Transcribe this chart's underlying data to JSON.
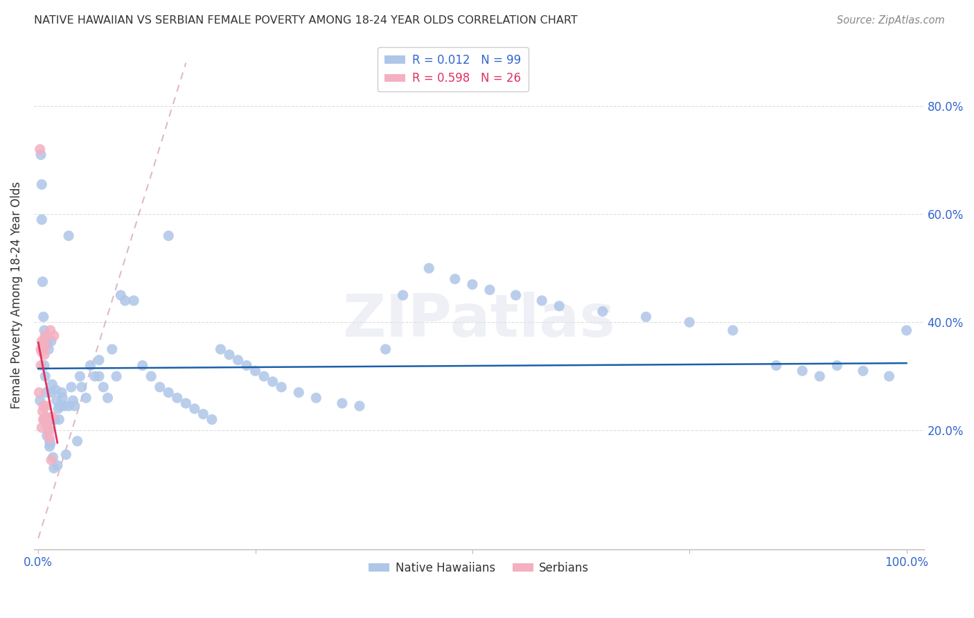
{
  "title": "NATIVE HAWAIIAN VS SERBIAN FEMALE POVERTY AMONG 18-24 YEAR OLDS CORRELATION CHART",
  "source": "Source: ZipAtlas.com",
  "ylabel": "Female Poverty Among 18-24 Year Olds",
  "r_hawaiian": 0.012,
  "n_hawaiian": 99,
  "r_serbian": 0.598,
  "n_serbian": 26,
  "hawaiian_color": "#aec6e8",
  "serbian_color": "#f4b0c0",
  "hawaiian_line_color": "#1a5fa8",
  "serbian_line_color": "#e03060",
  "diag_line_color": "#d8a8b8",
  "watermark": "ZIPatlas",
  "title_color": "#333333",
  "source_color": "#888888",
  "tick_color": "#3366cc",
  "grid_color": "#dddddd",
  "xlim": [
    0.0,
    1.0
  ],
  "ylim": [
    0.0,
    0.9
  ],
  "hawaiian_x": [
    0.002,
    0.004,
    0.004,
    0.005,
    0.006,
    0.007,
    0.007,
    0.008,
    0.009,
    0.01,
    0.01,
    0.011,
    0.012,
    0.013,
    0.013,
    0.014,
    0.015,
    0.016,
    0.017,
    0.018,
    0.019,
    0.02,
    0.021,
    0.022,
    0.023,
    0.024,
    0.025,
    0.027,
    0.028,
    0.03,
    0.032,
    0.035,
    0.038,
    0.04,
    0.042,
    0.045,
    0.048,
    0.05,
    0.055,
    0.06,
    0.065,
    0.07,
    0.075,
    0.08,
    0.085,
    0.09,
    0.095,
    0.1,
    0.11,
    0.12,
    0.13,
    0.14,
    0.15,
    0.16,
    0.17,
    0.18,
    0.19,
    0.2,
    0.21,
    0.22,
    0.23,
    0.24,
    0.25,
    0.26,
    0.27,
    0.28,
    0.3,
    0.32,
    0.35,
    0.37,
    0.4,
    0.42,
    0.45,
    0.48,
    0.5,
    0.52,
    0.55,
    0.58,
    0.6,
    0.65,
    0.7,
    0.75,
    0.8,
    0.85,
    0.88,
    0.9,
    0.92,
    0.95,
    0.98,
    1.0,
    0.003,
    0.035,
    0.006,
    0.008,
    0.01,
    0.012,
    0.015,
    0.07,
    0.15
  ],
  "hawaiian_y": [
    0.255,
    0.655,
    0.59,
    0.475,
    0.41,
    0.385,
    0.32,
    0.3,
    0.27,
    0.21,
    0.19,
    0.22,
    0.2,
    0.18,
    0.17,
    0.175,
    0.27,
    0.285,
    0.15,
    0.13,
    0.22,
    0.275,
    0.255,
    0.135,
    0.24,
    0.22,
    0.245,
    0.27,
    0.26,
    0.245,
    0.155,
    0.245,
    0.28,
    0.255,
    0.245,
    0.18,
    0.3,
    0.28,
    0.26,
    0.32,
    0.3,
    0.3,
    0.28,
    0.26,
    0.35,
    0.3,
    0.45,
    0.44,
    0.44,
    0.32,
    0.3,
    0.28,
    0.27,
    0.26,
    0.25,
    0.24,
    0.23,
    0.22,
    0.35,
    0.34,
    0.33,
    0.32,
    0.31,
    0.3,
    0.29,
    0.28,
    0.27,
    0.26,
    0.25,
    0.245,
    0.35,
    0.45,
    0.5,
    0.48,
    0.47,
    0.46,
    0.45,
    0.44,
    0.43,
    0.42,
    0.41,
    0.4,
    0.385,
    0.32,
    0.31,
    0.3,
    0.32,
    0.31,
    0.3,
    0.385,
    0.71,
    0.56,
    0.36,
    0.37,
    0.36,
    0.35,
    0.365,
    0.33,
    0.56
  ],
  "serbian_x": [
    0.001,
    0.002,
    0.003,
    0.003,
    0.004,
    0.004,
    0.005,
    0.005,
    0.006,
    0.006,
    0.007,
    0.007,
    0.008,
    0.008,
    0.009,
    0.009,
    0.01,
    0.011,
    0.012,
    0.013,
    0.014,
    0.015,
    0.016,
    0.018,
    0.004,
    0.006
  ],
  "serbian_y": [
    0.27,
    0.72,
    0.35,
    0.32,
    0.365,
    0.345,
    0.355,
    0.235,
    0.245,
    0.22,
    0.365,
    0.34,
    0.355,
    0.375,
    0.245,
    0.225,
    0.215,
    0.205,
    0.195,
    0.185,
    0.385,
    0.145,
    0.225,
    0.375,
    0.205,
    0.22
  ]
}
